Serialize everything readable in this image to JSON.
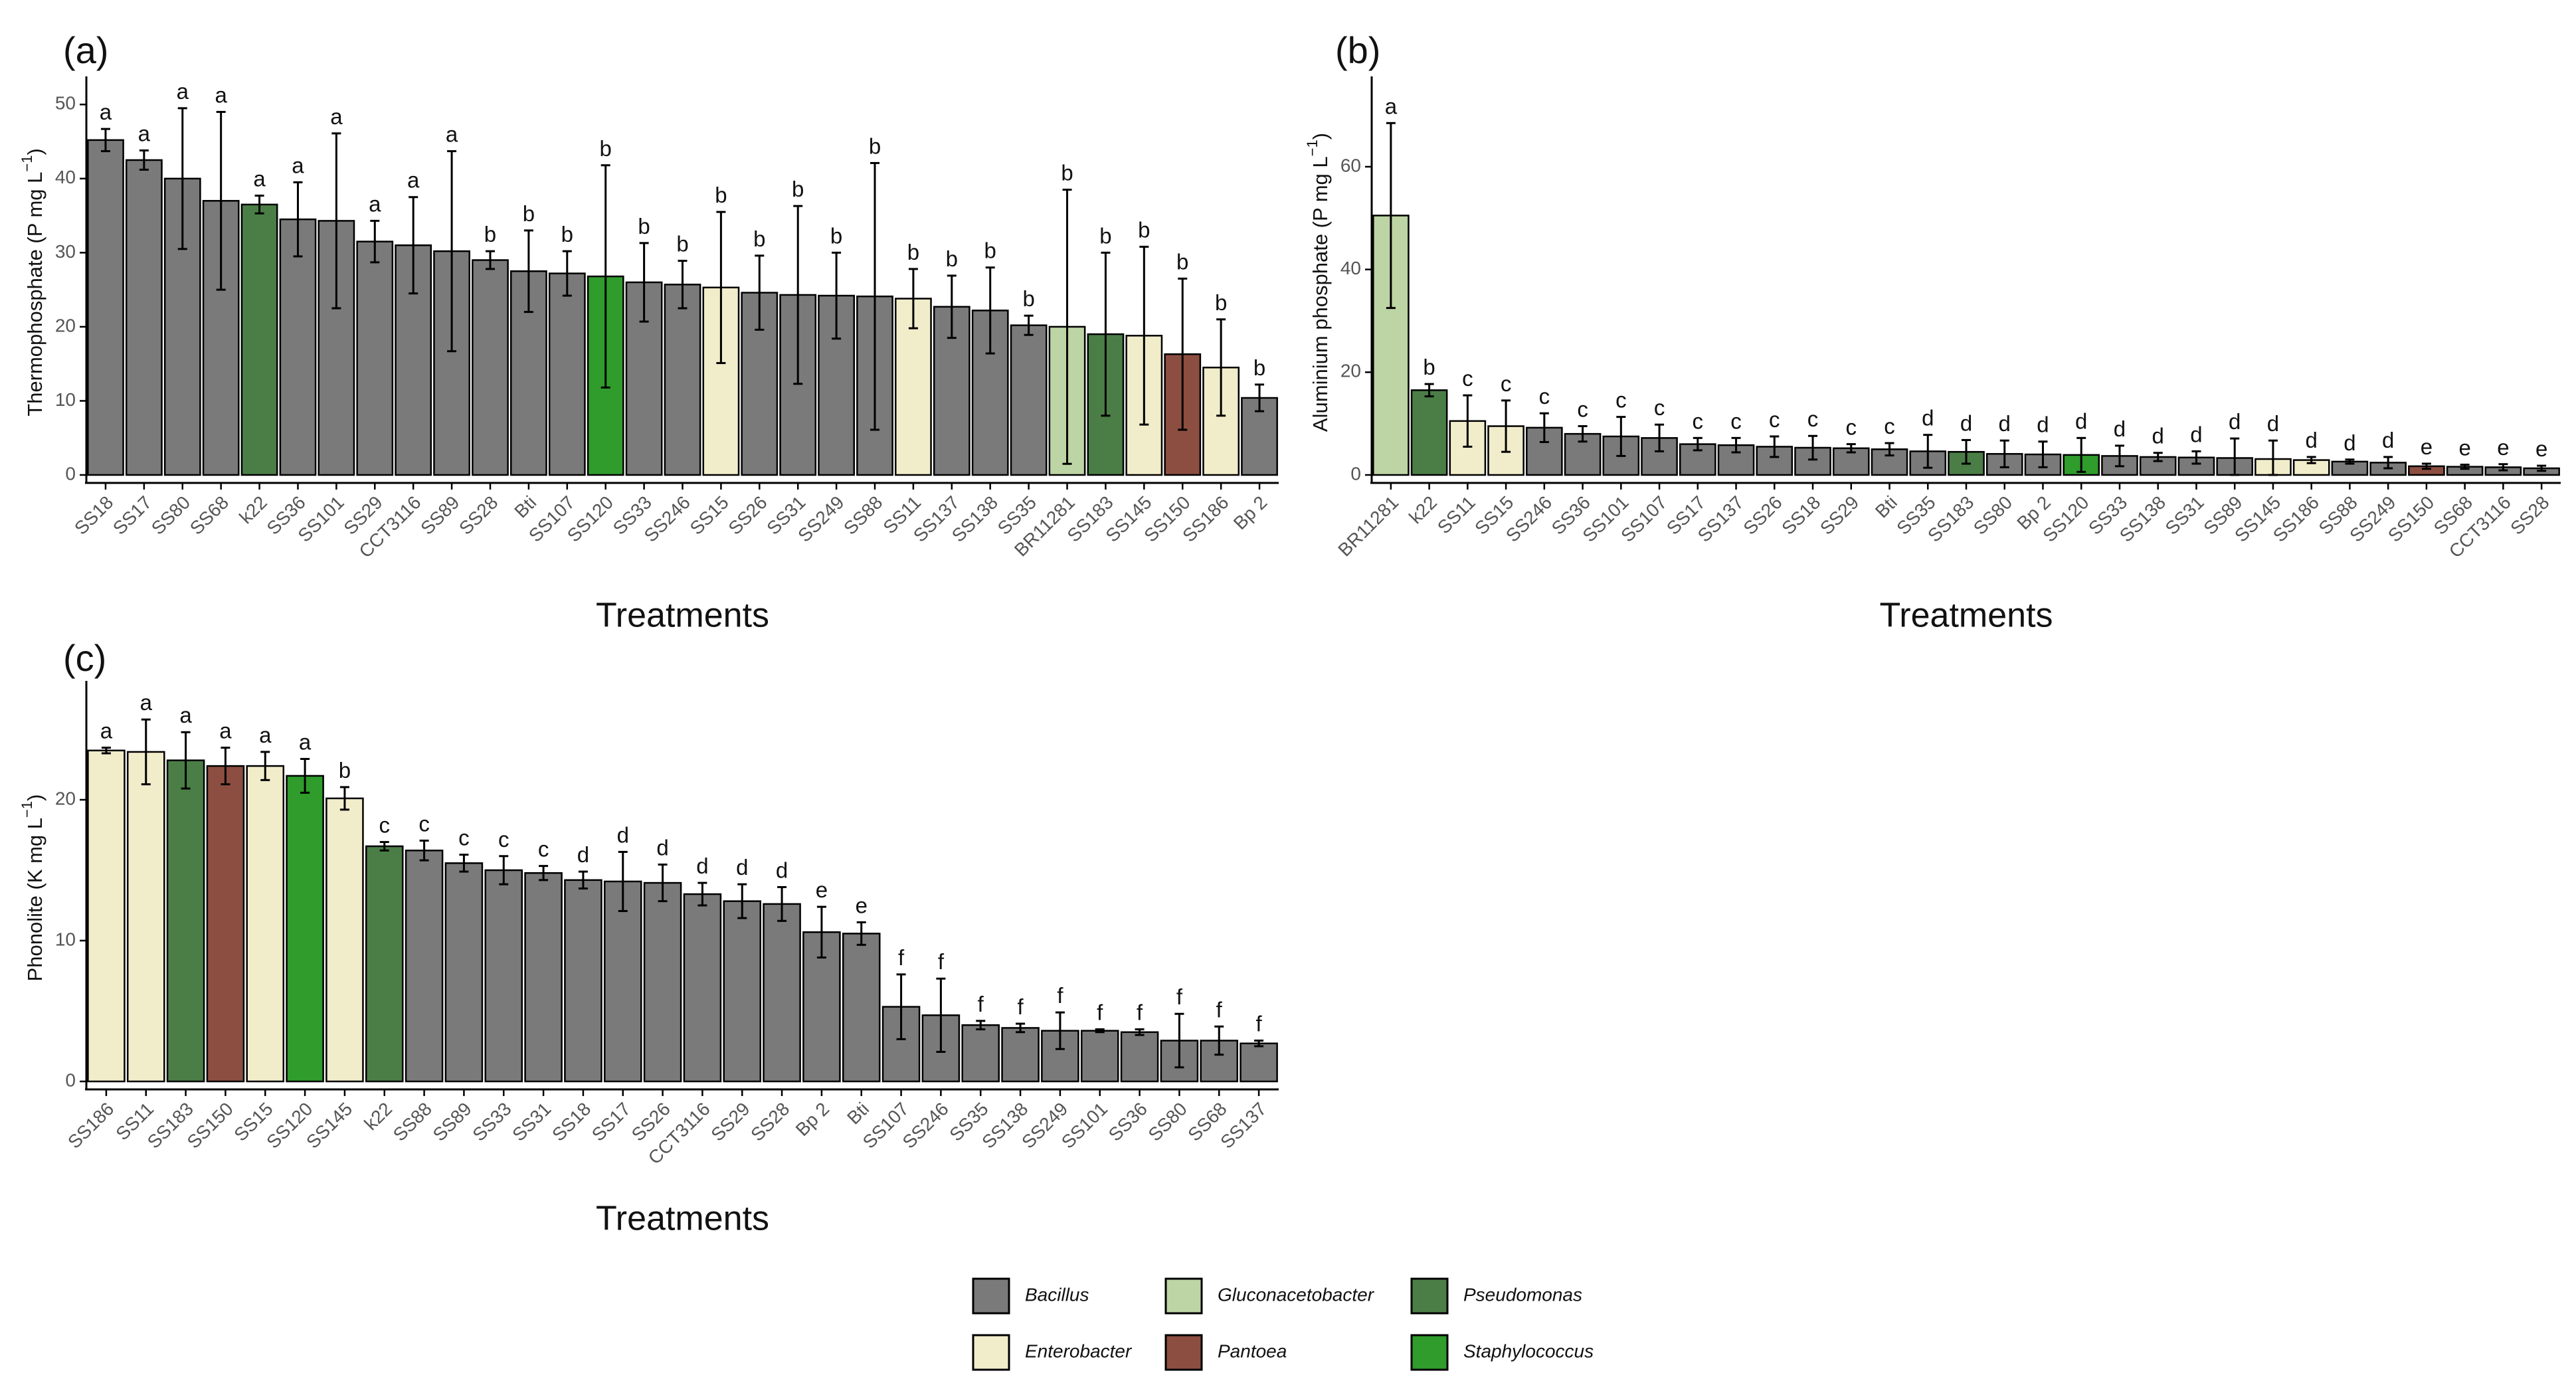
{
  "colors": {
    "Bacillus": "#7a7a7a",
    "Gluconacetobacter": "#bdd4a4",
    "Pseudomonas": "#4b7e46",
    "Enterobacter": "#f1ecca",
    "Pantoea": "#8c4e40",
    "Staphylococcus": "#2f9c2c"
  },
  "legend": {
    "entries": [
      "Bacillus",
      "Gluconacetobacter",
      "Pseudomonas",
      "Enterobacter",
      "Pantoea",
      "Staphylococcus"
    ]
  },
  "chart_data": [
    {
      "type": "bar",
      "panel_label": "(a)",
      "ylabel": "Thermophosphate (P mg L",
      "ylabel_sup": "−1",
      "ylabel_close": ")",
      "xlabel": "Treatments",
      "ylim": [
        0,
        52
      ],
      "yticks": [
        0,
        10,
        20,
        30,
        40,
        50
      ],
      "categories": [
        "SS18",
        "SS17",
        "SS80",
        "SS68",
        "k22",
        "SS36",
        "SS101",
        "SS29",
        "CCT3116",
        "SS89",
        "SS28",
        "Bti",
        "SS107",
        "SS120",
        "SS33",
        "SS246",
        "SS15",
        "SS26",
        "SS31",
        "SS249",
        "SS88",
        "SS11",
        "SS137",
        "SS138",
        "SS35",
        "BR11281",
        "SS183",
        "SS145",
        "SS150",
        "SS186",
        "Bp 2"
      ],
      "values": [
        45.2,
        42.5,
        40.0,
        37.0,
        36.5,
        34.5,
        34.3,
        31.5,
        31.0,
        30.2,
        29.0,
        27.5,
        27.2,
        26.8,
        26.0,
        25.7,
        25.3,
        24.6,
        24.3,
        24.2,
        24.1,
        23.8,
        22.7,
        22.2,
        20.2,
        20.0,
        19.0,
        18.8,
        16.3,
        14.5,
        10.4
      ],
      "errors": [
        1.5,
        1.3,
        9.5,
        12.0,
        1.2,
        5.0,
        11.8,
        2.8,
        6.5,
        13.5,
        1.2,
        5.5,
        3.0,
        15.0,
        5.3,
        3.2,
        10.2,
        5.0,
        12.0,
        5.8,
        18.0,
        4.0,
        4.2,
        5.8,
        1.3,
        18.5,
        11.0,
        12.0,
        10.2,
        6.5,
        1.8
      ],
      "letters": [
        "a",
        "a",
        "a",
        "a",
        "a",
        "a",
        "a",
        "a",
        "a",
        "a",
        "b",
        "b",
        "b",
        "b",
        "b",
        "b",
        "b",
        "b",
        "b",
        "b",
        "b",
        "b",
        "b",
        "b",
        "b",
        "b",
        "b",
        "b",
        "b",
        "b",
        "b"
      ],
      "genus": [
        "Bacillus",
        "Bacillus",
        "Bacillus",
        "Bacillus",
        "Pseudomonas",
        "Bacillus",
        "Bacillus",
        "Bacillus",
        "Bacillus",
        "Bacillus",
        "Bacillus",
        "Bacillus",
        "Bacillus",
        "Staphylococcus",
        "Bacillus",
        "Bacillus",
        "Enterobacter",
        "Bacillus",
        "Bacillus",
        "Bacillus",
        "Bacillus",
        "Enterobacter",
        "Bacillus",
        "Bacillus",
        "Bacillus",
        "Gluconacetobacter",
        "Pseudomonas",
        "Enterobacter",
        "Pantoea",
        "Enterobacter",
        "Bacillus"
      ]
    },
    {
      "type": "bar",
      "panel_label": "(b)",
      "ylabel": "Aluminium phosphate (P mg L",
      "ylabel_sup": "−1",
      "ylabel_close": ")",
      "xlabel": "Treatments",
      "ylim": [
        0,
        75
      ],
      "yticks": [
        0,
        20,
        40,
        60
      ],
      "categories": [
        "BR11281",
        "k22",
        "SS11",
        "SS15",
        "SS246",
        "SS36",
        "SS101",
        "SS107",
        "SS17",
        "SS137",
        "SS26",
        "SS18",
        "SS29",
        "Bti",
        "SS35",
        "SS183",
        "SS80",
        "Bp 2",
        "SS120",
        "SS33",
        "SS138",
        "SS31",
        "SS89",
        "SS145",
        "SS186",
        "SS88",
        "SS249",
        "SS150",
        "SS68",
        "CCT3116",
        "SS28"
      ],
      "values": [
        50.5,
        16.5,
        10.5,
        9.5,
        9.2,
        8.0,
        7.5,
        7.2,
        6.0,
        5.8,
        5.5,
        5.3,
        5.2,
        5.0,
        4.6,
        4.5,
        4.1,
        4.0,
        3.9,
        3.7,
        3.5,
        3.4,
        3.3,
        3.1,
        2.9,
        2.6,
        2.4,
        1.7,
        1.6,
        1.5,
        1.3
      ],
      "errors": [
        18.0,
        1.2,
        5.0,
        5.0,
        2.8,
        1.5,
        3.8,
        2.6,
        1.2,
        1.4,
        2.0,
        2.3,
        0.8,
        1.2,
        3.2,
        2.3,
        2.6,
        2.5,
        3.3,
        2.0,
        0.8,
        1.2,
        3.8,
        3.6,
        0.6,
        0.4,
        1.1,
        0.5,
        0.4,
        0.6,
        0.5
      ],
      "letters": [
        "a",
        "b",
        "c",
        "c",
        "c",
        "c",
        "c",
        "c",
        "c",
        "c",
        "c",
        "c",
        "c",
        "c",
        "d",
        "d",
        "d",
        "d",
        "d",
        "d",
        "d",
        "d",
        "d",
        "d",
        "d",
        "d",
        "d",
        "e",
        "e",
        "e",
        "e"
      ],
      "genus": [
        "Gluconacetobacter",
        "Pseudomonas",
        "Enterobacter",
        "Enterobacter",
        "Bacillus",
        "Bacillus",
        "Bacillus",
        "Bacillus",
        "Bacillus",
        "Bacillus",
        "Bacillus",
        "Bacillus",
        "Bacillus",
        "Bacillus",
        "Bacillus",
        "Pseudomonas",
        "Bacillus",
        "Bacillus",
        "Staphylococcus",
        "Bacillus",
        "Bacillus",
        "Bacillus",
        "Bacillus",
        "Enterobacter",
        "Enterobacter",
        "Bacillus",
        "Bacillus",
        "Pantoea",
        "Bacillus",
        "Bacillus",
        "Bacillus"
      ]
    },
    {
      "type": "bar",
      "panel_label": "(c)",
      "ylabel": "Phonolite (K mg L",
      "ylabel_sup": "−1",
      "ylabel_close": ")",
      "xlabel": "Treatments",
      "ylim": [
        0,
        27.5
      ],
      "yticks": [
        0,
        10,
        20
      ],
      "categories": [
        "SS186",
        "SS11",
        "SS183",
        "SS150",
        "SS15",
        "SS120",
        "SS145",
        "k22",
        "SS88",
        "SS89",
        "SS33",
        "SS31",
        "SS18",
        "SS17",
        "SS26",
        "CCT3116",
        "SS29",
        "SS28",
        "Bp 2",
        "Bti",
        "SS107",
        "SS246",
        "SS35",
        "SS138",
        "SS249",
        "SS101",
        "SS36",
        "SS80",
        "SS68",
        "SS137"
      ],
      "values": [
        23.5,
        23.4,
        22.8,
        22.4,
        22.4,
        21.7,
        20.1,
        16.7,
        16.4,
        15.5,
        15.0,
        14.8,
        14.3,
        14.2,
        14.1,
        13.3,
        12.8,
        12.6,
        10.6,
        10.5,
        5.3,
        4.7,
        4.0,
        3.8,
        3.6,
        3.6,
        3.5,
        2.9,
        2.9,
        2.7
      ],
      "errors": [
        0.2,
        2.3,
        2.0,
        1.3,
        1.0,
        1.2,
        0.8,
        0.3,
        0.7,
        0.6,
        1.0,
        0.5,
        0.6,
        2.1,
        1.3,
        0.8,
        1.2,
        1.2,
        1.8,
        0.8,
        2.3,
        2.6,
        0.3,
        0.3,
        1.3,
        0.1,
        0.2,
        1.9,
        1.0,
        0.2
      ],
      "letters": [
        "a",
        "a",
        "a",
        "a",
        "a",
        "a",
        "b",
        "c",
        "c",
        "c",
        "c",
        "c",
        "d",
        "d",
        "d",
        "d",
        "d",
        "d",
        "e",
        "e",
        "f",
        "f",
        "f",
        "f",
        "f",
        "f",
        "f",
        "f",
        "f",
        "f"
      ],
      "genus": [
        "Enterobacter",
        "Enterobacter",
        "Pseudomonas",
        "Pantoea",
        "Enterobacter",
        "Staphylococcus",
        "Enterobacter",
        "Pseudomonas",
        "Bacillus",
        "Bacillus",
        "Bacillus",
        "Bacillus",
        "Bacillus",
        "Bacillus",
        "Bacillus",
        "Bacillus",
        "Bacillus",
        "Bacillus",
        "Bacillus",
        "Bacillus",
        "Bacillus",
        "Bacillus",
        "Bacillus",
        "Bacillus",
        "Bacillus",
        "Bacillus",
        "Bacillus",
        "Bacillus",
        "Bacillus",
        "Bacillus"
      ]
    }
  ]
}
